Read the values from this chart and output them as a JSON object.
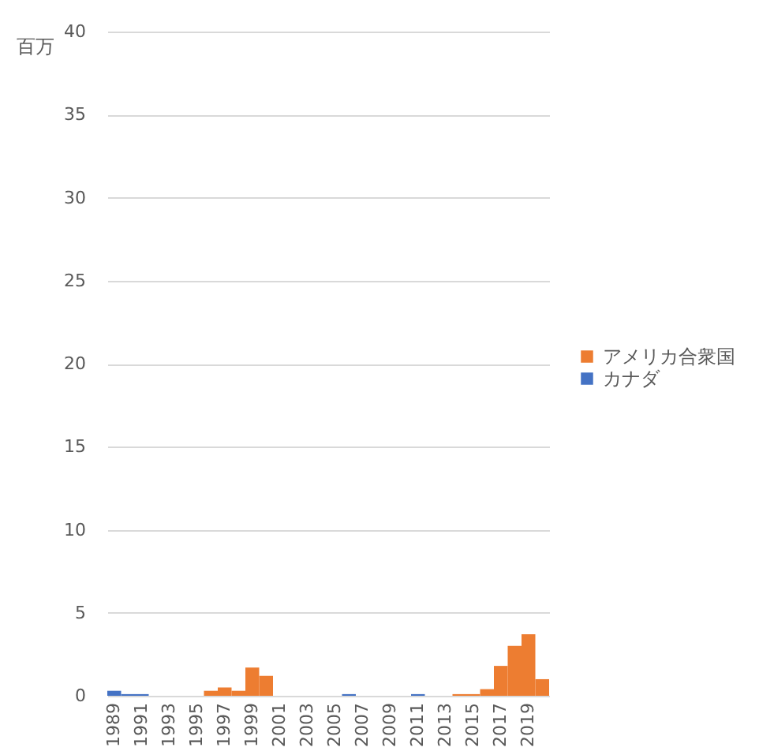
{
  "chart_data": {
    "type": "bar",
    "ylabel": "百万",
    "categories": [
      "1989",
      null,
      "1991",
      null,
      "1993",
      null,
      "1995",
      null,
      "1997",
      null,
      "1999",
      null,
      "2001",
      null,
      "2003",
      null,
      "2005",
      null,
      "2007",
      null,
      "2009",
      null,
      "2011",
      null,
      "2013",
      null,
      "2015",
      null,
      "2017",
      null,
      "2019",
      null
    ],
    "series": [
      {
        "name": "アメリカ合衆国",
        "color": "#ed7d31",
        "values": [
          0,
          0,
          0,
          0,
          0,
          0,
          0,
          0.3,
          0.5,
          0.3,
          1.7,
          1.2,
          0,
          0,
          0,
          0,
          0,
          0,
          0,
          0,
          0,
          0,
          0,
          0,
          0,
          0.1,
          0.1,
          0.4,
          1.8,
          3.0,
          3.7,
          1.0
        ]
      },
      {
        "name": "カナダ",
        "color": "#4472c4",
        "values": [
          0.3,
          0.1,
          0.1,
          0,
          0,
          0,
          0,
          0,
          0,
          0,
          0,
          0,
          0,
          0,
          0,
          0,
          0,
          0.1,
          0,
          0,
          0,
          0,
          0.1,
          0,
          0,
          0,
          0,
          0,
          0,
          0,
          0,
          0
        ]
      }
    ],
    "ylim": [
      0,
      40
    ],
    "yticks": [
      0,
      5,
      10,
      15,
      20,
      25,
      30,
      35,
      40
    ],
    "grid": "y",
    "legend": "right"
  }
}
